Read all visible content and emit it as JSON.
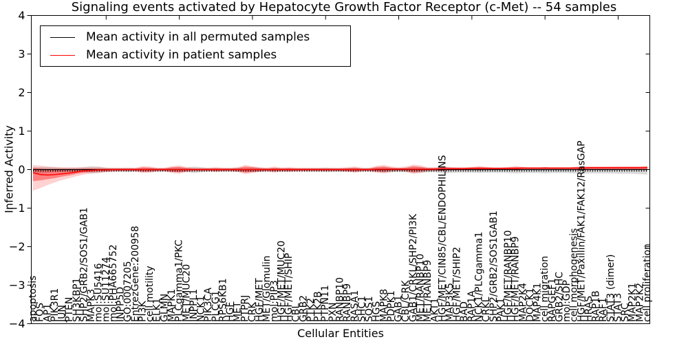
{
  "chart_data": {
    "type": "line",
    "title": "Signaling events activated by Hepatocyte Growth Factor Receptor (c-Met) -- 54 samples",
    "xlabel": "Cellular Entities",
    "ylabel": "Inferred Activity",
    "ylim": [
      -4,
      4
    ],
    "yticks": [
      -4,
      -3,
      -2,
      -1,
      0,
      1,
      2,
      3,
      4
    ],
    "top_tick_every": 10,
    "legend_position": "upper left",
    "grid": false,
    "categories": [
      "apoptosis",
      "FOS",
      "AP1",
      "PIK3R1",
      "JUN",
      "PTEN",
      "SH3KBP1",
      "SHP2/GRB2/SOS1/GAB1",
      "MAPK3",
      "mol:SU5416",
      "mol:SU11274",
      "mol:PHA665752",
      "INPP5D",
      "GO:0007205",
      "EntrezGene:200958",
      "PI3K",
      "cell motility",
      "ELK1",
      "GLMN",
      "MAPK1",
      "PLCgamma1/PKC",
      "MET/MUC20",
      "INPPL1",
      "NCK1",
      "PIK3CA",
      "PLCG1",
      "RPS6KB1",
      "HGF",
      "MET",
      "PTPRJ",
      "CRK",
      "HGF/MET",
      "MET/Glomulin",
      "mol:PIP3",
      "HGF/MET/MUC20",
      "HGF/MET/SHIP",
      "CBL",
      "GRB2",
      "PTK2",
      "PTK2B",
      "PTPN11",
      "PXN",
      "RANBP10",
      "RANBP9",
      "RASA1",
      "SHC1",
      "SOS1",
      "HGS",
      "MAPK8",
      "PDPK1",
      "GAB1",
      "CBL/CRK",
      "GAB1/CRKL/SHP2/PI3K",
      "MET/RANBP10",
      "MET/RANBP9",
      "AKT1",
      "HGF/MET/CIN85/CBL/ENDOPHILINS",
      "MAP3K5",
      "HGF/MET/SHIP2",
      "BAD",
      "RAP1A",
      "NCK1/PLCgamma1",
      "CRKL",
      "SHP2/GRB2/SOS1GAB1",
      "PAK1",
      "HGF/MET/RANBP10",
      "HGF/MET/RANBP9",
      "MAP2K4",
      "DOCK1",
      "MAP4K1",
      "cell migration",
      "RAPGEF1",
      "GRB2/SHC",
      "mol:GDP",
      "cell morphogenesis",
      "HGF/MET/Paxillin/FAK1/FAK12/RasGAP",
      "HRAS",
      "RAP1B",
      "RAF1",
      "STAT3 (dimer)",
      "STAT3",
      "SRC",
      "MAP2K1",
      "MAP2K2",
      "cell proliferation"
    ],
    "series": [
      {
        "name": "Mean activity in all permuted samples",
        "color": "#000000",
        "values": [
          0,
          0,
          0,
          0,
          0,
          0,
          0,
          0,
          0,
          0,
          0,
          0,
          0,
          0,
          0,
          0,
          0,
          0,
          0,
          0,
          0,
          0,
          0,
          0,
          0,
          0,
          0,
          0,
          0,
          0,
          0,
          0,
          0,
          0,
          0,
          0,
          0,
          0,
          0,
          0,
          0,
          0,
          0,
          0,
          0,
          0,
          0,
          0,
          0,
          0,
          0,
          0,
          0,
          0,
          0,
          0,
          0,
          0,
          0,
          0,
          0,
          0,
          0,
          0,
          0,
          0,
          0,
          0,
          0,
          0,
          0,
          0,
          0,
          0,
          0,
          0,
          0,
          0,
          0,
          0,
          0,
          0,
          0,
          0,
          0
        ],
        "band": {
          "color": "#000000",
          "opacity": 0.14,
          "upper": [
            0.06,
            0.07,
            0.07,
            0.06,
            0.05,
            0.05,
            0.05,
            0.06,
            0.09,
            0.08,
            0.05,
            0.04,
            0.04,
            0.05,
            0.04,
            0.04,
            0.05,
            0.04,
            0.04,
            0.05,
            0.06,
            0.05,
            0.08,
            0.06,
            0.04,
            0.04,
            0.04,
            0.04,
            0.05,
            0.04,
            0.06,
            0.05,
            0.04,
            0.04,
            0.05,
            0.04,
            0.04,
            0.04,
            0.04,
            0.04,
            0.05,
            0.04,
            0.04,
            0.04,
            0.05,
            0.04,
            0.04,
            0.05,
            0.06,
            0.05,
            0.04,
            0.05,
            0.06,
            0.06,
            0.05,
            0.05,
            0.07,
            0.06,
            0.05,
            0.05,
            0.05,
            0.06,
            0.05,
            0.05,
            0.05,
            0.05,
            0.06,
            0.05,
            0.05,
            0.05,
            0.06,
            0.05,
            0.05,
            0.05,
            0.06,
            0.05,
            0.05,
            0.05,
            0.05,
            0.05,
            0.05,
            0.05,
            0.05,
            0.05,
            0.06
          ],
          "lower": [
            -0.1,
            -0.1,
            -0.09,
            -0.08,
            -0.07,
            -0.06,
            -0.06,
            -0.07,
            -0.1,
            -0.09,
            -0.06,
            -0.05,
            -0.05,
            -0.06,
            -0.05,
            -0.05,
            -0.06,
            -0.05,
            -0.05,
            -0.06,
            -0.07,
            -0.06,
            -0.09,
            -0.07,
            -0.05,
            -0.05,
            -0.05,
            -0.05,
            -0.06,
            -0.05,
            -0.07,
            -0.06,
            -0.05,
            -0.05,
            -0.06,
            -0.05,
            -0.05,
            -0.05,
            -0.05,
            -0.05,
            -0.06,
            -0.05,
            -0.05,
            -0.05,
            -0.06,
            -0.05,
            -0.05,
            -0.06,
            -0.08,
            -0.07,
            -0.06,
            -0.07,
            -0.09,
            -0.08,
            -0.07,
            -0.07,
            -0.1,
            -0.09,
            -0.08,
            -0.08,
            -0.08,
            -0.09,
            -0.08,
            -0.08,
            -0.08,
            -0.09,
            -0.1,
            -0.09,
            -0.09,
            -0.09,
            -0.1,
            -0.09,
            -0.09,
            -0.09,
            -0.1,
            -0.11,
            -0.1,
            -0.1,
            -0.1,
            -0.1,
            -0.11,
            -0.11,
            -0.11,
            -0.12,
            -0.13
          ]
        }
      },
      {
        "name": "Mean activity in patient samples",
        "color": "#ff0000",
        "values": [
          -0.08,
          -0.13,
          -0.14,
          -0.13,
          -0.11,
          -0.09,
          -0.06,
          -0.03,
          -0.02,
          -0.01,
          -0.01,
          0,
          0,
          0,
          0,
          0,
          0,
          0,
          0,
          0,
          0,
          0,
          0,
          0,
          0,
          0,
          0,
          0,
          0,
          0,
          0,
          0,
          0,
          0,
          0,
          0,
          0,
          0,
          0,
          0,
          0,
          0,
          0,
          0,
          0,
          0,
          0,
          0.01,
          0.01,
          0.01,
          0.01,
          0.01,
          0.01,
          0.01,
          0.01,
          0.01,
          0.02,
          0.02,
          0.02,
          0.02,
          0.03,
          0.03,
          0.03,
          0.03,
          0.03,
          0.03,
          0.03,
          0.04,
          0.04,
          0.04,
          0.04,
          0.04,
          0.04,
          0.04,
          0.04,
          0.04,
          0.05,
          0.05,
          0.05,
          0.05,
          0.05,
          0.05,
          0.05,
          0.05,
          0.05
        ],
        "band_inner": {
          "color": "#ff0000",
          "opacity": 0.38,
          "upper": [
            0.05,
            0.03,
            0.02,
            0.02,
            0.02,
            0.02,
            0.02,
            0.03,
            0.03,
            0.03,
            0.03,
            0.03,
            0.03,
            0.03,
            0.03,
            0.06,
            0.05,
            0.03,
            0.03,
            0.06,
            0.07,
            0.04,
            0.03,
            0.03,
            0.03,
            0.04,
            0.03,
            0.03,
            0.04,
            0.08,
            0.06,
            0.04,
            0.03,
            0.05,
            0.03,
            0.04,
            0.03,
            0.03,
            0.03,
            0.03,
            0.03,
            0.03,
            0.03,
            0.04,
            0.05,
            0.03,
            0.03,
            0.07,
            0.08,
            0.05,
            0.04,
            0.05,
            0.09,
            0.07,
            0.04,
            0.04,
            0.07,
            0.05,
            0.05,
            0.05,
            0.06,
            0.07,
            0.06,
            0.05,
            0.05,
            0.06,
            0.07,
            0.06,
            0.05,
            0.05,
            0.06,
            0.05,
            0.05,
            0.05,
            0.06,
            0.07,
            0.07,
            0.07,
            0.07,
            0.07,
            0.07,
            0.07,
            0.07,
            0.07,
            0.08
          ],
          "lower": [
            -0.3,
            -0.28,
            -0.25,
            -0.22,
            -0.18,
            -0.15,
            -0.11,
            -0.08,
            -0.06,
            -0.05,
            -0.04,
            -0.03,
            -0.03,
            -0.03,
            -0.03,
            -0.06,
            -0.05,
            -0.03,
            -0.03,
            -0.06,
            -0.07,
            -0.04,
            -0.03,
            -0.03,
            -0.03,
            -0.04,
            -0.03,
            -0.03,
            -0.04,
            -0.08,
            -0.06,
            -0.04,
            -0.03,
            -0.05,
            -0.03,
            -0.04,
            -0.03,
            -0.03,
            -0.03,
            -0.03,
            -0.03,
            -0.03,
            -0.03,
            -0.04,
            -0.05,
            -0.03,
            -0.03,
            -0.05,
            -0.06,
            -0.03,
            -0.02,
            -0.03,
            -0.07,
            -0.05,
            -0.02,
            -0.02,
            -0.03,
            -0.01,
            0,
            0,
            0,
            -0.01,
            0,
            0,
            0,
            0,
            -0.01,
            0,
            0,
            0,
            0,
            0,
            0,
            0,
            0,
            -0.01,
            0.01,
            0.01,
            0.01,
            0.01,
            0.01,
            0.01,
            0.01,
            0.01,
            0.02
          ]
        },
        "band_outer": {
          "color": "#ff0000",
          "opacity": 0.18,
          "upper": [
            0.12,
            0.1,
            0.08,
            0.07,
            0.06,
            0.06,
            0.06,
            0.07,
            0.06,
            0.06,
            0.05,
            0.05,
            0.05,
            0.05,
            0.05,
            0.09,
            0.08,
            0.05,
            0.05,
            0.09,
            0.11,
            0.07,
            0.05,
            0.05,
            0.05,
            0.06,
            0.05,
            0.05,
            0.06,
            0.12,
            0.09,
            0.06,
            0.05,
            0.08,
            0.05,
            0.06,
            0.05,
            0.05,
            0.05,
            0.05,
            0.05,
            0.05,
            0.05,
            0.06,
            0.08,
            0.05,
            0.05,
            0.1,
            0.12,
            0.08,
            0.06,
            0.08,
            0.13,
            0.11,
            0.06,
            0.06,
            0.09,
            0.07,
            0.06,
            0.06,
            0.07,
            0.09,
            0.07,
            0.06,
            0.06,
            0.07,
            0.09,
            0.07,
            0.06,
            0.06,
            0.07,
            0.06,
            0.06,
            0.06,
            0.07,
            0.09,
            0.08,
            0.08,
            0.08,
            0.08,
            0.09,
            0.09,
            0.09,
            0.09,
            0.1
          ],
          "lower": [
            -0.55,
            -0.48,
            -0.4,
            -0.33,
            -0.27,
            -0.22,
            -0.17,
            -0.13,
            -0.1,
            -0.08,
            -0.07,
            -0.06,
            -0.05,
            -0.05,
            -0.05,
            -0.09,
            -0.08,
            -0.05,
            -0.05,
            -0.09,
            -0.11,
            -0.07,
            -0.05,
            -0.05,
            -0.05,
            -0.06,
            -0.05,
            -0.05,
            -0.06,
            -0.12,
            -0.09,
            -0.06,
            -0.05,
            -0.08,
            -0.05,
            -0.06,
            -0.05,
            -0.05,
            -0.05,
            -0.05,
            -0.05,
            -0.05,
            -0.05,
            -0.06,
            -0.08,
            -0.05,
            -0.05,
            -0.08,
            -0.1,
            -0.06,
            -0.04,
            -0.06,
            -0.11,
            -0.09,
            -0.04,
            -0.04,
            -0.05,
            -0.03,
            -0.02,
            -0.02,
            -0.01,
            -0.03,
            -0.01,
            -0.01,
            -0.01,
            -0.01,
            -0.03,
            -0.01,
            -0.01,
            -0.01,
            -0.01,
            -0.01,
            -0.01,
            -0.01,
            -0.01,
            -0.03,
            -0.01,
            0,
            0,
            0,
            0,
            0,
            0,
            0,
            0
          ]
        }
      }
    ]
  }
}
